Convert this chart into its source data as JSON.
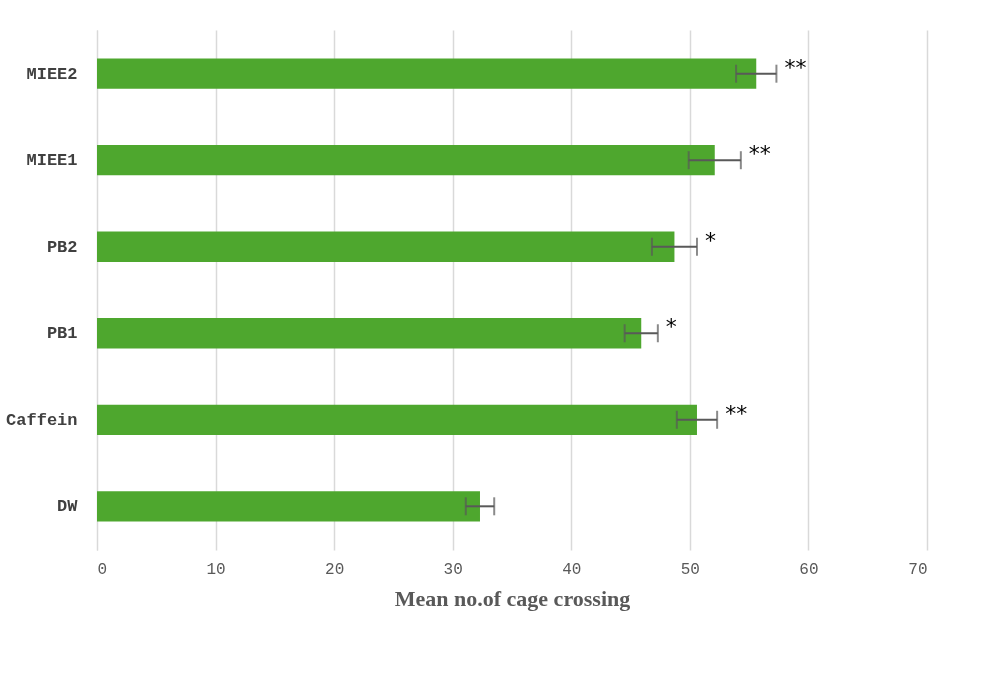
{
  "chart_data": {
    "type": "bar",
    "orientation": "horizontal",
    "xlabel": "Mean no.of cage crossing",
    "categories": [
      "MIEE2",
      "MIEE1",
      "PB2",
      "PB1",
      "Caffein",
      "DW"
    ],
    "values": [
      55.6,
      52.1,
      48.7,
      45.9,
      50.6,
      32.3
    ],
    "errors": [
      1.7,
      2.2,
      1.9,
      1.4,
      1.7,
      1.2
    ],
    "color": "#4ea72e",
    "xlim": [
      0,
      70
    ],
    "xticks": [
      0,
      10,
      20,
      30,
      40,
      50,
      60,
      70
    ],
    "grid": "x",
    "annotations": [
      {
        "text": "**",
        "x": 57.3,
        "y": "MIEE2"
      },
      {
        "text": "**",
        "x": 54.3,
        "y": "MIEE1"
      },
      {
        "text": "*",
        "x": 50.6,
        "y": "PB2"
      },
      {
        "text": "*",
        "x": 47.3,
        "y": "PB1"
      },
      {
        "text": "**",
        "x": 52.3,
        "y": "Caffein"
      }
    ]
  }
}
